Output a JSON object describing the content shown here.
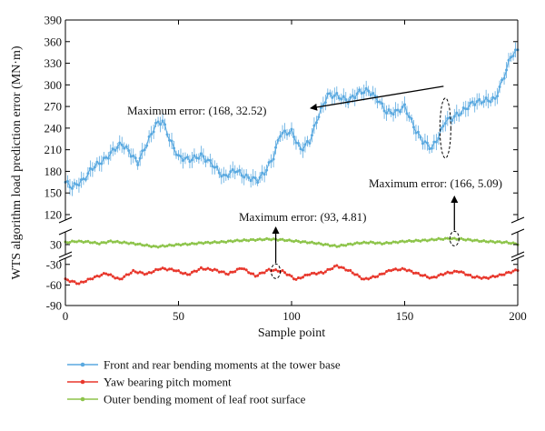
{
  "chart_data": {
    "type": "line",
    "title": "",
    "xlabel": "Sample point",
    "ylabel": "WTS algorithm load prediction error (MN·m)",
    "xlim": [
      0,
      200
    ],
    "x_ticks": [
      0,
      50,
      100,
      150,
      200
    ],
    "broken_y_axis": true,
    "y_segments": [
      {
        "range": [
          120,
          390
        ],
        "ticks": [
          120,
          150,
          180,
          210,
          240,
          270,
          300,
          330,
          360,
          390
        ]
      },
      {
        "range": [
          20,
          45
        ],
        "ticks": [
          30
        ]
      },
      {
        "range": [
          -90,
          -25
        ],
        "ticks": [
          -30,
          -60,
          -90
        ]
      }
    ],
    "grid": false,
    "legend_position": "bottom",
    "series": [
      {
        "name": "Front and rear bending moments at the tower base",
        "color": "#5aa9e0",
        "marker": "circle",
        "error_bars": true,
        "segment": 0,
        "key_x": [
          0,
          3,
          8,
          12,
          18,
          22,
          25,
          28,
          32,
          36,
          40,
          43,
          46,
          50,
          55,
          60,
          65,
          70,
          75,
          80,
          85,
          88,
          92,
          95,
          100,
          104,
          108,
          112,
          116,
          120,
          125,
          130,
          134,
          138,
          142,
          146,
          150,
          155,
          158,
          162,
          165,
          168,
          171,
          175,
          180,
          185,
          190,
          194,
          197,
          200
        ],
        "key_y": [
          165,
          158,
          168,
          185,
          198,
          212,
          218,
          208,
          192,
          218,
          245,
          250,
          225,
          200,
          196,
          202,
          190,
          172,
          182,
          172,
          168,
          178,
          200,
          232,
          235,
          210,
          222,
          258,
          286,
          285,
          278,
          290,
          292,
          280,
          262,
          262,
          270,
          236,
          222,
          212,
          228,
          250,
          254,
          262,
          275,
          278,
          280,
          312,
          340,
          348
        ]
      },
      {
        "name": "Yaw bearing pitch moment",
        "color": "#e8372c",
        "marker": "circle",
        "error_bars": true,
        "segment": 2,
        "key_x": [
          0,
          6,
          12,
          18,
          24,
          30,
          36,
          42,
          48,
          54,
          60,
          66,
          72,
          78,
          84,
          90,
          96,
          102,
          108,
          114,
          120,
          126,
          132,
          138,
          144,
          150,
          156,
          162,
          168,
          174,
          180,
          186,
          192,
          200
        ],
        "key_y": [
          -52,
          -58,
          -50,
          -43,
          -52,
          -40,
          -44,
          -36,
          -38,
          -45,
          -36,
          -38,
          -44,
          -35,
          -47,
          -38,
          -40,
          -52,
          -44,
          -42,
          -32,
          -40,
          -52,
          -47,
          -38,
          -37,
          -44,
          -50,
          -43,
          -40,
          -48,
          -50,
          -46,
          -38
        ]
      },
      {
        "name": "Outer bending moment of leaf root surface",
        "color": "#8dc44a",
        "marker": "circle",
        "error_bars": true,
        "segment": 1,
        "key_x": [
          0,
          5,
          10,
          15,
          20,
          25,
          30,
          35,
          40,
          45,
          50,
          55,
          60,
          65,
          70,
          75,
          80,
          85,
          90,
          95,
          100,
          105,
          110,
          115,
          120,
          125,
          130,
          135,
          140,
          145,
          150,
          155,
          160,
          165,
          170,
          175,
          180,
          185,
          190,
          195,
          200
        ],
        "key_y": [
          34,
          36,
          35,
          32,
          36,
          34,
          32,
          29,
          26,
          28,
          30,
          31,
          33,
          34,
          35,
          37,
          38,
          39,
          40,
          39,
          37,
          35,
          33,
          30,
          27,
          30,
          33,
          34,
          32,
          34,
          36,
          37,
          38,
          40,
          41,
          40,
          38,
          36,
          35,
          34,
          31
        ]
      }
    ],
    "annotations": [
      {
        "text": "Maximum error: (168, 32.52)",
        "point": [
          168,
          240
        ],
        "segment": 0
      },
      {
        "text": "Maximum error: (166, 5.09)",
        "point": [
          172,
          41
        ],
        "segment": 1
      },
      {
        "text": "Maximum error: (93, 4.81)",
        "point": [
          93,
          -40
        ],
        "segment": 2
      }
    ]
  }
}
